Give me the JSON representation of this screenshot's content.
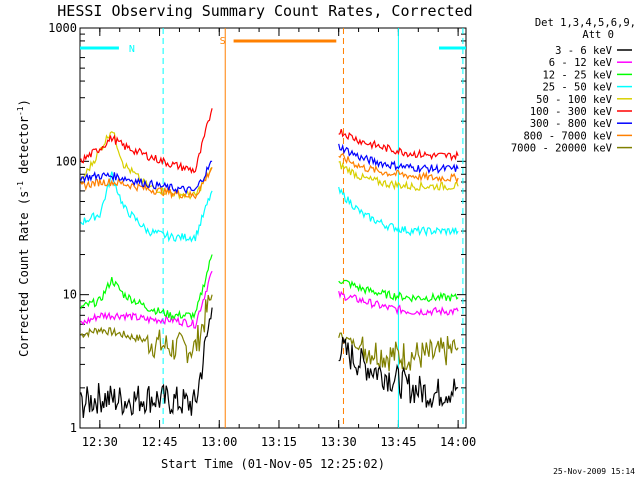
{
  "chart_data": {
    "type": "line",
    "title": "HESSI Observing Summary Count Rates, Corrected",
    "xlabel": "Start Time (01-Nov-05 12:25:02)",
    "ylabel": "Corrected Count Rate (s",
    "ylabel_sup": "-1",
    "ylabel_tail": " detector",
    "ylabel_tail_sup": "-1",
    "ylabel_close": ")",
    "y_scale": "log",
    "ylim": [
      1,
      1000
    ],
    "xlim": [
      12.417,
      14.033
    ],
    "x_ticks": [
      {
        "v": 12.5,
        "label": "12:30"
      },
      {
        "v": 12.75,
        "label": "12:45"
      },
      {
        "v": 13.0,
        "label": "13:00"
      },
      {
        "v": 13.25,
        "label": "13:15"
      },
      {
        "v": 13.5,
        "label": "13:30"
      },
      {
        "v": 13.75,
        "label": "13:45"
      },
      {
        "v": 14.0,
        "label": "14:00"
      }
    ],
    "y_ticks": [
      {
        "v": 1,
        "label": "1"
      },
      {
        "v": 10,
        "label": "10"
      },
      {
        "v": 100,
        "label": "100"
      },
      {
        "v": 1000,
        "label": "1000"
      }
    ],
    "legend_header": [
      "Det 1,3,4,5,6,9,",
      "Att 0"
    ],
    "series": [
      {
        "name": "3 - 6 keV",
        "color": "#000000",
        "x": [
          12.42,
          12.5,
          12.6,
          12.7,
          12.8,
          12.9,
          12.97,
          13.0,
          13.5,
          13.6,
          13.7,
          13.8,
          13.9,
          14.0
        ],
        "y": [
          1.5,
          1.7,
          1.6,
          1.7,
          1.6,
          1.5,
          8,
          null,
          4,
          3,
          2.5,
          2,
          1.8,
          2
        ]
      },
      {
        "name": "6 - 12 keV",
        "color": "#ff00ff",
        "x": [
          12.42,
          12.5,
          12.6,
          12.7,
          12.8,
          12.9,
          12.97,
          13.0,
          13.5,
          13.6,
          13.7,
          13.8,
          13.9,
          14.0
        ],
        "y": [
          6,
          7,
          7,
          6.5,
          6.5,
          6,
          15,
          null,
          10,
          9,
          8,
          7.5,
          7.5,
          7.5
        ]
      },
      {
        "name": "12 - 25 keV",
        "color": "#00ff00",
        "x": [
          12.42,
          12.5,
          12.55,
          12.6,
          12.7,
          12.8,
          12.9,
          12.97,
          13.0,
          13.5,
          13.6,
          13.7,
          13.8,
          13.9,
          14.0
        ],
        "y": [
          8,
          9,
          13,
          10,
          8,
          7,
          7,
          20,
          null,
          13,
          11,
          10,
          9.5,
          9.5,
          9.5
        ]
      },
      {
        "name": "25 - 50 keV",
        "color": "#00ffff",
        "x": [
          12.42,
          12.5,
          12.55,
          12.6,
          12.7,
          12.8,
          12.9,
          12.97,
          13.0,
          13.5,
          13.6,
          13.7,
          13.8,
          13.9,
          14.0
        ],
        "y": [
          35,
          40,
          80,
          45,
          30,
          27,
          27,
          60,
          null,
          60,
          40,
          33,
          30,
          30,
          30
        ]
      },
      {
        "name": "50 - 100 keV",
        "color": "#d8d000",
        "x": [
          12.42,
          12.5,
          12.55,
          12.6,
          12.7,
          12.8,
          12.9,
          12.97,
          13.0,
          13.5,
          13.6,
          13.7,
          13.8,
          13.9,
          14.0
        ],
        "y": [
          70,
          120,
          175,
          95,
          65,
          58,
          55,
          90,
          null,
          95,
          75,
          68,
          65,
          65,
          65
        ]
      },
      {
        "name": "100 - 300 keV",
        "color": "#ff0000",
        "x": [
          12.42,
          12.5,
          12.55,
          12.6,
          12.7,
          12.8,
          12.9,
          12.97,
          13.0,
          13.5,
          13.6,
          13.7,
          13.8,
          13.9,
          14.0
        ],
        "y": [
          100,
          125,
          150,
          130,
          110,
          95,
          85,
          250,
          null,
          170,
          140,
          125,
          115,
          110,
          110
        ]
      },
      {
        "name": "300 - 800 keV",
        "color": "#0000ff",
        "x": [
          12.42,
          12.5,
          12.55,
          12.6,
          12.7,
          12.8,
          12.9,
          12.97,
          13.0,
          13.5,
          13.6,
          13.7,
          13.8,
          13.9,
          14.0
        ],
        "y": [
          75,
          78,
          78,
          75,
          68,
          63,
          60,
          100,
          null,
          130,
          105,
          95,
          90,
          88,
          88
        ]
      },
      {
        "name": "800 - 7000 keV",
        "color": "#ff8000",
        "x": [
          12.42,
          12.5,
          12.55,
          12.6,
          12.7,
          12.8,
          12.9,
          12.97,
          13.0,
          13.5,
          13.6,
          13.7,
          13.8,
          13.9,
          14.0
        ],
        "y": [
          65,
          70,
          70,
          68,
          62,
          58,
          55,
          90,
          null,
          110,
          90,
          82,
          78,
          75,
          75
        ]
      },
      {
        "name": "7000 - 20000 keV",
        "color": "#808000",
        "x": [
          12.42,
          12.5,
          12.6,
          12.7,
          12.8,
          12.9,
          12.97,
          13.0,
          13.5,
          13.6,
          13.7,
          13.8,
          13.9,
          14.0
        ],
        "y": [
          5,
          5.5,
          5,
          4.5,
          4,
          4,
          10,
          null,
          5,
          4,
          3.5,
          3.5,
          3.5,
          4
        ]
      }
    ],
    "annotations": {
      "night_bars": [
        {
          "label": "N",
          "x0": 12.417,
          "x1": 12.58,
          "color": "#00ffff"
        },
        {
          "label": "",
          "x0": 13.92,
          "x1": 14.033,
          "color": "#00ffff"
        }
      ],
      "saa_bars": [
        {
          "label": "S",
          "x0": 13.06,
          "x1": 13.49,
          "color": "#ff8000"
        }
      ],
      "vlines": [
        {
          "x": 12.765,
          "color": "#00ffff",
          "style": "dashed"
        },
        {
          "x": 13.025,
          "color": "#ff8000",
          "style": "solid"
        },
        {
          "x": 13.52,
          "color": "#ff8000",
          "style": "dashed"
        },
        {
          "x": 13.75,
          "color": "#00ffff",
          "style": "solid"
        },
        {
          "x": 14.02,
          "color": "#00ffff",
          "style": "dashed"
        }
      ]
    },
    "footer": "25-Nov-2009 15:14"
  }
}
